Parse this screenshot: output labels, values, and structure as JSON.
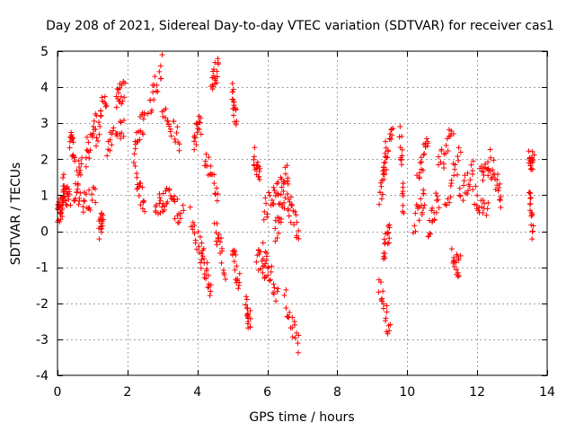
{
  "chart_data": {
    "type": "scatter",
    "title": "Day 208 of 2021, Sidereal Day-to-day VTEC variation (SDTVAR) for receiver cas1",
    "xlabel": "GPS time / hours",
    "ylabel": "SDTVAR / TECUs",
    "xlim": [
      0,
      14
    ],
    "ylim": [
      -4,
      5
    ],
    "xticks": [
      "0",
      "2",
      "4",
      "6",
      "8",
      "10",
      "12",
      "14"
    ],
    "yticks": [
      "-4",
      "-3",
      "-2",
      "-1",
      "0",
      "1",
      "2",
      "3",
      "4",
      "5"
    ],
    "grid": true,
    "marker": "plus",
    "series_color": "#ff0000",
    "segments": [
      {
        "x": [
          0.0,
          0.1
        ],
        "y": [
          0.5,
          0.6
        ]
      },
      {
        "x": [
          0.1,
          0.2
        ],
        "y": [
          0.6,
          1.4
        ]
      },
      {
        "x": [
          0.2,
          0.35
        ],
        "y": [
          1.0,
          0.9
        ]
      },
      {
        "x": [
          0.35,
          0.5
        ],
        "y": [
          2.5,
          2.2
        ]
      },
      {
        "x": [
          0.5,
          0.7
        ],
        "y": [
          1.0,
          2.0
        ]
      },
      {
        "x": [
          0.6,
          1.1
        ],
        "y": [
          0.8,
          0.9
        ]
      },
      {
        "x": [
          0.8,
          1.1
        ],
        "y": [
          2.0,
          3.2
        ]
      },
      {
        "x": [
          1.1,
          1.4
        ],
        "y": [
          2.6,
          3.8
        ]
      },
      {
        "x": [
          1.2,
          1.3
        ],
        "y": [
          0.0,
          0.4
        ]
      },
      {
        "x": [
          1.4,
          1.9
        ],
        "y": [
          2.4,
          3.0
        ]
      },
      {
        "x": [
          1.7,
          1.9
        ],
        "y": [
          3.6,
          4.0
        ]
      },
      {
        "x": [
          2.2,
          2.5
        ],
        "y": [
          2.4,
          3.2
        ]
      },
      {
        "x": [
          2.2,
          2.5
        ],
        "y": [
          1.6,
          0.8
        ]
      },
      {
        "x": [
          2.6,
          3.0
        ],
        "y": [
          3.3,
          4.6
        ]
      },
      {
        "x": [
          2.8,
          3.1
        ],
        "y": [
          0.6,
          0.9
        ]
      },
      {
        "x": [
          3.0,
          3.5
        ],
        "y": [
          3.5,
          2.5
        ]
      },
      {
        "x": [
          3.1,
          3.6
        ],
        "y": [
          1.0,
          0.4
        ]
      },
      {
        "x": [
          3.9,
          4.1
        ],
        "y": [
          2.6,
          3.0
        ]
      },
      {
        "x": [
          3.8,
          4.2
        ],
        "y": [
          0.4,
          -0.8
        ]
      },
      {
        "x": [
          4.1,
          4.4
        ],
        "y": [
          -0.8,
          -1.6
        ]
      },
      {
        "x": [
          4.2,
          4.6
        ],
        "y": [
          2.0,
          1.0
        ]
      },
      {
        "x": [
          4.4,
          4.6
        ],
        "y": [
          4.0,
          4.6
        ]
      },
      {
        "x": [
          4.5,
          4.8
        ],
        "y": [
          0.2,
          -1.0
        ]
      },
      {
        "x": [
          5.0,
          5.1
        ],
        "y": [
          3.8,
          3.0
        ]
      },
      {
        "x": [
          5.0,
          5.2
        ],
        "y": [
          -0.4,
          -1.5
        ]
      },
      {
        "x": [
          5.4,
          5.5
        ],
        "y": [
          -2.0,
          -2.6
        ]
      },
      {
        "x": [
          5.6,
          5.8
        ],
        "y": [
          2.1,
          1.6
        ]
      },
      {
        "x": [
          5.7,
          6.0
        ],
        "y": [
          -0.8,
          -1.0
        ]
      },
      {
        "x": [
          5.9,
          6.3
        ],
        "y": [
          0.5,
          1.2
        ]
      },
      {
        "x": [
          5.9,
          6.3
        ],
        "y": [
          -0.6,
          -1.8
        ]
      },
      {
        "x": [
          6.2,
          6.6
        ],
        "y": [
          0.0,
          0.8
        ]
      },
      {
        "x": [
          6.3,
          6.6
        ],
        "y": [
          1.0,
          1.7
        ]
      },
      {
        "x": [
          6.5,
          6.9
        ],
        "y": [
          -1.8,
          -3.2
        ]
      },
      {
        "x": [
          6.6,
          6.9
        ],
        "y": [
          0.8,
          -0.2
        ]
      },
      {
        "x": [
          9.2,
          9.4
        ],
        "y": [
          0.8,
          2.0
        ]
      },
      {
        "x": [
          9.3,
          9.6
        ],
        "y": [
          2.0,
          2.9
        ]
      },
      {
        "x": [
          9.2,
          9.5
        ],
        "y": [
          -1.4,
          -2.8
        ]
      },
      {
        "x": [
          9.3,
          9.5
        ],
        "y": [
          -0.6,
          0.0
        ]
      },
      {
        "x": [
          9.8,
          9.9
        ],
        "y": [
          2.8,
          0.6
        ]
      },
      {
        "x": [
          10.2,
          10.5
        ],
        "y": [
          0.2,
          1.0
        ]
      },
      {
        "x": [
          10.3,
          10.6
        ],
        "y": [
          1.4,
          2.6
        ]
      },
      {
        "x": [
          10.6,
          10.9
        ],
        "y": [
          0.0,
          1.0
        ]
      },
      {
        "x": [
          10.9,
          11.3
        ],
        "y": [
          1.8,
          2.8
        ]
      },
      {
        "x": [
          11.1,
          11.5
        ],
        "y": [
          0.8,
          2.2
        ]
      },
      {
        "x": [
          11.3,
          11.5
        ],
        "y": [
          -0.8,
          -1.0
        ]
      },
      {
        "x": [
          11.5,
          11.9
        ],
        "y": [
          1.0,
          1.6
        ]
      },
      {
        "x": [
          11.9,
          12.3
        ],
        "y": [
          1.0,
          0.6
        ]
      },
      {
        "x": [
          12.1,
          12.4
        ],
        "y": [
          1.4,
          2.0
        ]
      },
      {
        "x": [
          12.4,
          12.7
        ],
        "y": [
          1.8,
          1.0
        ]
      },
      {
        "x": [
          13.5,
          13.6
        ],
        "y": [
          2.2,
          1.8
        ]
      },
      {
        "x": [
          13.5,
          13.6
        ],
        "y": [
          1.0,
          0.0
        ]
      }
    ]
  }
}
